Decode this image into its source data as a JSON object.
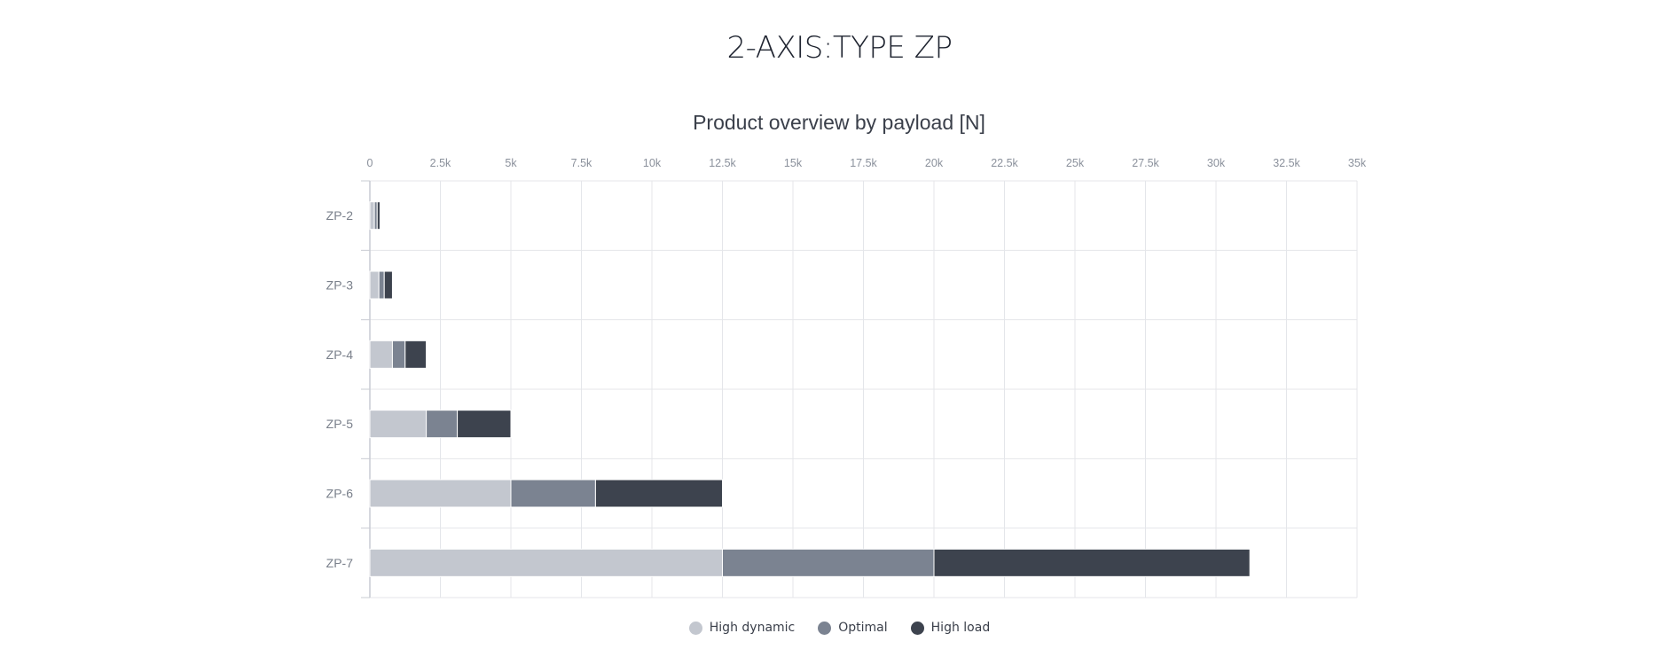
{
  "page": {
    "title": "2-AXIS:TYPE ZP"
  },
  "chart_data": {
    "type": "bar",
    "orientation": "horizontal",
    "stacked": true,
    "title": "Product overview by payload [N]",
    "xlabel": "",
    "ylabel": "",
    "categories": [
      "ZP-2",
      "ZP-3",
      "ZP-4",
      "ZP-5",
      "ZP-6",
      "ZP-7"
    ],
    "series": [
      {
        "name": "High dynamic",
        "color": "#c3c7cf",
        "values": [
          160,
          320,
          800,
          2000,
          5000,
          12500
        ]
      },
      {
        "name": "Optimal",
        "color": "#7b8391",
        "values": [
          100,
          190,
          450,
          1100,
          3000,
          7500
        ]
      },
      {
        "name": "High load",
        "color": "#3d434e",
        "values": [
          100,
          290,
          750,
          1900,
          4500,
          11200
        ]
      }
    ],
    "xlim": [
      0,
      35000
    ],
    "tick_values": [
      0,
      2500,
      5000,
      7500,
      10000,
      12500,
      15000,
      17500,
      20000,
      22500,
      25000,
      27500,
      30000,
      32500,
      35000
    ],
    "tick_labels": [
      "0",
      "2.5k",
      "5k",
      "7.5k",
      "10k",
      "12.5k",
      "15k",
      "17.5k",
      "20k",
      "22.5k",
      "25k",
      "27.5k",
      "30k",
      "32.5k",
      "35k"
    ],
    "grid": true,
    "legend_position": "bottom-center"
  }
}
